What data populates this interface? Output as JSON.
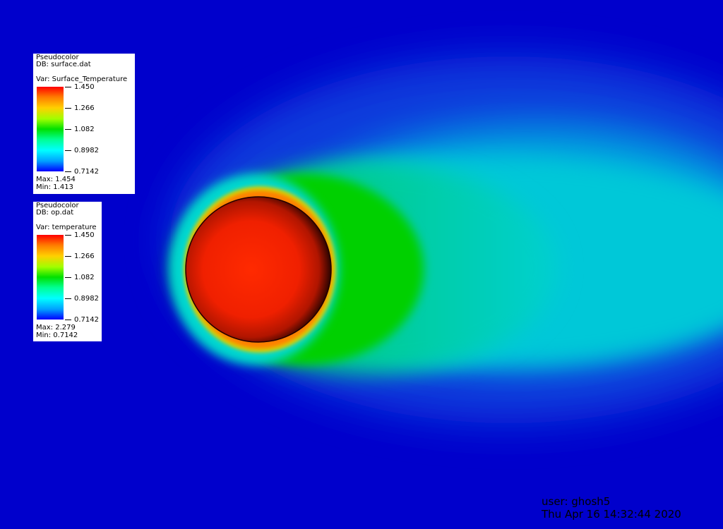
{
  "colors": {
    "background": "#0000cc",
    "sphere": "#ff2000",
    "legend_bg": "#ffffff"
  },
  "legends": [
    {
      "plot_type": "Pseudocolor",
      "db": "DB: surface.dat",
      "var": "Var: Surface_Temperature",
      "ticks": [
        "1.450",
        "1.266",
        "1.082",
        "0.8982",
        "0.7142"
      ],
      "max": "Max:  1.454",
      "min": "Min:  1.413"
    },
    {
      "plot_type": "Pseudocolor",
      "db": "DB: op.dat",
      "var": "Var: temperature",
      "ticks": [
        "1.450",
        "1.266",
        "1.082",
        "0.8982",
        "0.7142"
      ],
      "max": "Max:  2.279",
      "min": "Min:  0.7142"
    }
  ],
  "user_info": {
    "user": "user: ghosh5",
    "date": "Thu Apr 16 14:32:44 2020"
  }
}
